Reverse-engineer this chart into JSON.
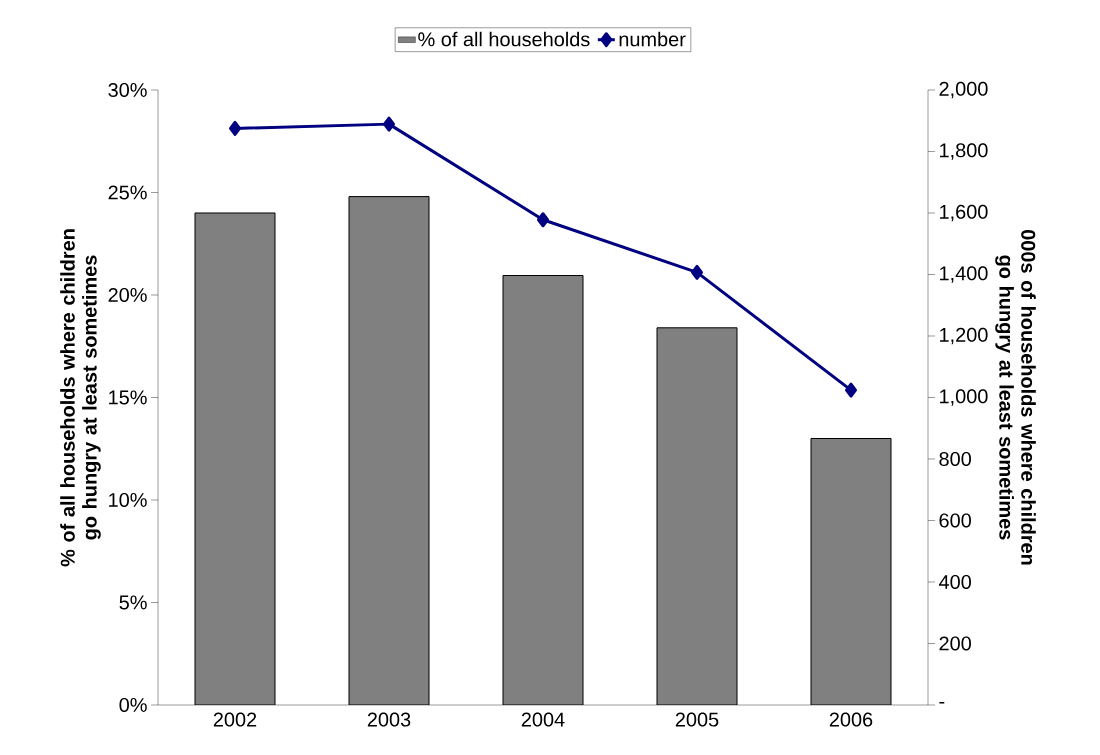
{
  "chart_data": {
    "type": "bar",
    "categories": [
      "2002",
      "2003",
      "2004",
      "2005",
      "2006"
    ],
    "series": [
      {
        "name": "% of all households",
        "color": "#808080",
        "values": [
          24.0,
          24.8,
          20.95,
          18.4,
          13.0
        ]
      },
      {
        "name": "number",
        "type": "line",
        "axis": "y2",
        "color": "#000080",
        "marker": "diamond",
        "values": [
          1875,
          1889,
          1578,
          1407,
          1024
        ]
      }
    ],
    "ylabel": "% of all households where children go hungry at least sometimes",
    "y2label": "000s of households where children go hungry at least sometimes",
    "ylim": [
      0,
      30
    ],
    "yticks": [
      {
        "value": 0,
        "label": "0%"
      },
      {
        "value": 5,
        "label": "5%"
      },
      {
        "value": 10,
        "label": "10%"
      },
      {
        "value": 15,
        "label": "15%"
      },
      {
        "value": 20,
        "label": "20%"
      },
      {
        "value": 25,
        "label": "25%"
      },
      {
        "value": 30,
        "label": "30%"
      }
    ],
    "y2lim": [
      0,
      2000
    ],
    "y2ticks": [
      {
        "value": 0,
        "label": "-"
      },
      {
        "value": 200,
        "label": "200"
      },
      {
        "value": 400,
        "label": "400"
      },
      {
        "value": 600,
        "label": "600"
      },
      {
        "value": 800,
        "label": "800"
      },
      {
        "value": 1000,
        "label": "1,000"
      },
      {
        "value": 1200,
        "label": "1,200"
      },
      {
        "value": 1400,
        "label": "1,400"
      },
      {
        "value": 1600,
        "label": "1,600"
      },
      {
        "value": 1800,
        "label": "1,800"
      },
      {
        "value": 2000,
        "label": "2,000"
      }
    ],
    "legend": "top",
    "grid": false
  }
}
